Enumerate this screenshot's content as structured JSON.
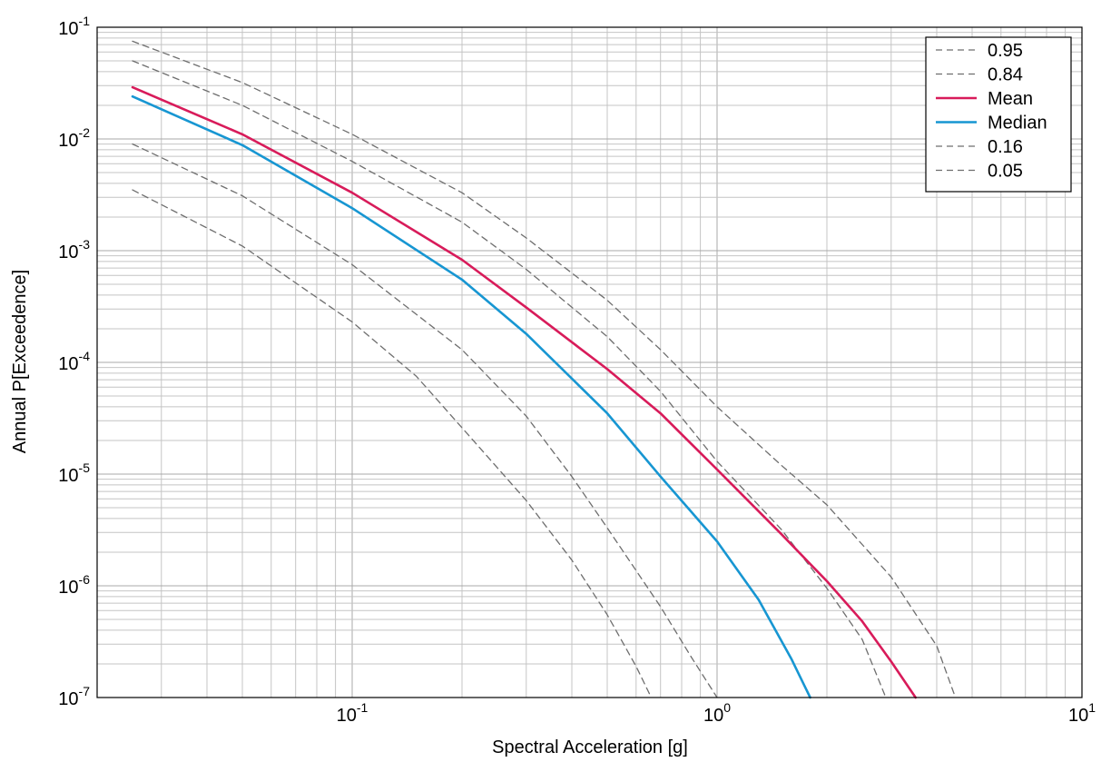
{
  "chart_data": {
    "type": "line",
    "xlabel": "Spectral Acceleration [g]",
    "ylabel": "Annual P[Exceedence]",
    "xscale": "log",
    "yscale": "log",
    "xlim": [
      0.02,
      10
    ],
    "ylim": [
      1e-07,
      0.1
    ],
    "grid": true,
    "legend_position": "top-right",
    "x_ticks": [
      {
        "base": "10",
        "exp": "-1",
        "value": 0.1
      },
      {
        "base": "10",
        "exp": "0",
        "value": 1
      },
      {
        "base": "10",
        "exp": "1",
        "value": 10
      }
    ],
    "y_ticks": [
      {
        "base": "10",
        "exp": "-1",
        "value": 0.1
      },
      {
        "base": "10",
        "exp": "-2",
        "value": 0.01
      },
      {
        "base": "10",
        "exp": "-3",
        "value": 0.001
      },
      {
        "base": "10",
        "exp": "-4",
        "value": 0.0001
      },
      {
        "base": "10",
        "exp": "-5",
        "value": 1e-05
      },
      {
        "base": "10",
        "exp": "-6",
        "value": 1e-06
      },
      {
        "base": "10",
        "exp": "-7",
        "value": 1e-07
      }
    ],
    "series": [
      {
        "name": "0.95",
        "color": "#6e6e6e",
        "style": "dashed",
        "points": [
          [
            0.025,
            0.075
          ],
          [
            0.05,
            0.032
          ],
          [
            0.1,
            0.011
          ],
          [
            0.2,
            0.0033
          ],
          [
            0.3,
            0.0013
          ],
          [
            0.5,
            0.00036
          ],
          [
            0.7,
            0.00013
          ],
          [
            1.0,
            4e-05
          ],
          [
            1.5,
            1.2e-05
          ],
          [
            2.0,
            5.3e-06
          ],
          [
            3.0,
            1.2e-06
          ],
          [
            4.0,
            2.9e-07
          ],
          [
            4.5,
            1e-07
          ]
        ]
      },
      {
        "name": "0.84",
        "color": "#6e6e6e",
        "style": "dashed",
        "points": [
          [
            0.025,
            0.05
          ],
          [
            0.05,
            0.02
          ],
          [
            0.1,
            0.0063
          ],
          [
            0.2,
            0.0018
          ],
          [
            0.3,
            0.00068
          ],
          [
            0.5,
            0.00017
          ],
          [
            0.7,
            5.5e-05
          ],
          [
            1.0,
            1.3e-05
          ],
          [
            1.5,
            3.2e-06
          ],
          [
            2.0,
            9.5e-07
          ],
          [
            2.5,
            3.3e-07
          ],
          [
            2.9,
            1e-07
          ]
        ]
      },
      {
        "name": "Mean",
        "color": "#d81b5a",
        "style": "solid",
        "points": [
          [
            0.025,
            0.029
          ],
          [
            0.05,
            0.011
          ],
          [
            0.1,
            0.0033
          ],
          [
            0.2,
            0.00083
          ],
          [
            0.3,
            0.00031
          ],
          [
            0.5,
            8.7e-05
          ],
          [
            0.7,
            3.5e-05
          ],
          [
            1.0,
            1.1e-05
          ],
          [
            1.5,
            2.9e-06
          ],
          [
            2.0,
            1.1e-06
          ],
          [
            2.5,
            4.8e-07
          ],
          [
            3.0,
            2.1e-07
          ],
          [
            3.5,
            1e-07
          ]
        ]
      },
      {
        "name": "Median",
        "color": "#1796d2",
        "style": "solid",
        "points": [
          [
            0.025,
            0.024
          ],
          [
            0.05,
            0.0088
          ],
          [
            0.1,
            0.0024
          ],
          [
            0.2,
            0.00055
          ],
          [
            0.3,
            0.00018
          ],
          [
            0.5,
            3.5e-05
          ],
          [
            0.7,
            9.5e-06
          ],
          [
            1.0,
            2.5e-06
          ],
          [
            1.3,
            7.5e-07
          ],
          [
            1.6,
            2.2e-07
          ],
          [
            1.8,
            1e-07
          ]
        ]
      },
      {
        "name": "0.16",
        "color": "#6e6e6e",
        "style": "dashed",
        "points": [
          [
            0.025,
            0.009
          ],
          [
            0.05,
            0.0031
          ],
          [
            0.1,
            0.00075
          ],
          [
            0.2,
            0.00013
          ],
          [
            0.3,
            3.3e-05
          ],
          [
            0.4,
            9.5e-06
          ],
          [
            0.5,
            3.3e-06
          ],
          [
            0.7,
            6.5e-07
          ],
          [
            0.85,
            2.3e-07
          ],
          [
            1.0,
            1e-07
          ]
        ]
      },
      {
        "name": "0.05",
        "color": "#6e6e6e",
        "style": "dashed",
        "points": [
          [
            0.025,
            0.0035
          ],
          [
            0.05,
            0.0011
          ],
          [
            0.1,
            0.00023
          ],
          [
            0.15,
            7.5e-05
          ],
          [
            0.2,
            2.6e-05
          ],
          [
            0.3,
            5.8e-06
          ],
          [
            0.4,
            1.7e-06
          ],
          [
            0.5,
            5.5e-07
          ],
          [
            0.6,
            1.9e-07
          ],
          [
            0.66,
            1e-07
          ]
        ]
      }
    ]
  }
}
